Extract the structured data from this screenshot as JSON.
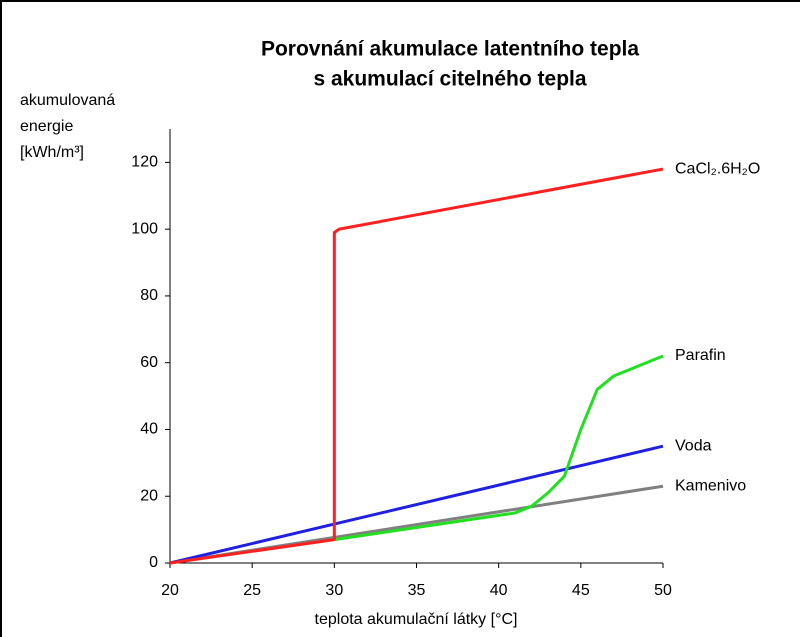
{
  "chart_data": {
    "type": "line",
    "title": [
      "Porovnání akumulace latentního tepla",
      "s akumulací citelného tepla"
    ],
    "y_label": [
      "akumulovaná",
      "energie",
      "[kWh/m³]"
    ],
    "x_label": "teplota akumulační látky [°C]",
    "xlim": [
      20,
      50
    ],
    "xticks": [
      20,
      25,
      30,
      35,
      40,
      45,
      50
    ],
    "ylim": [
      0,
      130
    ],
    "yticks": [
      0,
      20,
      40,
      60,
      80,
      100,
      120
    ],
    "series": [
      {
        "name": "CaCl₂.6H₂O",
        "color": "#ff2020",
        "x": [
          20,
          30,
          30,
          30.3,
          50
        ],
        "values": [
          0,
          7,
          99,
          100,
          118
        ]
      },
      {
        "name": "Parafin",
        "color": "#20e020",
        "x": [
          30,
          41,
          42,
          43,
          44,
          45,
          46,
          47,
          48,
          50
        ],
        "values": [
          7,
          15,
          17,
          21,
          26,
          40,
          52,
          56,
          58,
          62
        ]
      },
      {
        "name": "Voda",
        "color": "#2020e0",
        "x": [
          20,
          50
        ],
        "values": [
          0,
          35
        ]
      },
      {
        "name": "Kamenivo",
        "color": "#808080",
        "x": [
          20,
          50
        ],
        "values": [
          0,
          23
        ]
      }
    ]
  }
}
